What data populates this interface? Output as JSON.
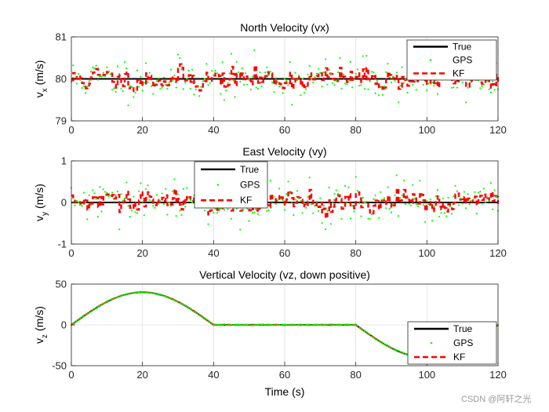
{
  "chart_data": [
    {
      "type": "line",
      "title": "North Velocity (vx)",
      "ylabel": "v",
      "ylabel_sub": "x",
      "ylabel_unit": "(m/s)",
      "xlabel": "",
      "xlim": [
        0,
        120
      ],
      "ylim": [
        79,
        81
      ],
      "xticks": [
        0,
        20,
        40,
        60,
        80,
        100,
        120
      ],
      "yticks": [
        79,
        80,
        81
      ],
      "grid": true,
      "legend_position": "top-right",
      "series": [
        {
          "name": "True",
          "color": "#000000",
          "style": "solid",
          "x": [
            0,
            120
          ],
          "values": [
            80,
            80
          ]
        },
        {
          "name": "GPS",
          "color": "#00ff00",
          "style": "markers",
          "model": "noise",
          "base": 80,
          "sigma": 0.25,
          "seed": 11
        },
        {
          "name": "KF",
          "color": "#ff0000",
          "style": "dashed",
          "model": "noise",
          "base": 80,
          "sigma": 0.22,
          "seed": 11
        }
      ]
    },
    {
      "type": "line",
      "title": "East Velocity (vy)",
      "ylabel": "v",
      "ylabel_sub": "y",
      "ylabel_unit": "(m/s)",
      "xlabel": "",
      "xlim": [
        0,
        120
      ],
      "ylim": [
        -1,
        1
      ],
      "xticks": [
        0,
        20,
        40,
        60,
        80,
        100,
        120
      ],
      "yticks": [
        -1,
        0,
        1
      ],
      "grid": true,
      "legend_position": "top-center",
      "series": [
        {
          "name": "True",
          "color": "#000000",
          "style": "solid",
          "x": [
            0,
            120
          ],
          "values": [
            0,
            0
          ]
        },
        {
          "name": "GPS",
          "color": "#00ff00",
          "style": "markers",
          "model": "noise",
          "base": 0,
          "sigma": 0.25,
          "seed": 29
        },
        {
          "name": "KF",
          "color": "#ff0000",
          "style": "dashed",
          "model": "noise",
          "base": 0,
          "sigma": 0.22,
          "seed": 29
        }
      ]
    },
    {
      "type": "line",
      "title": "Vertical Velocity (vz, down positive)",
      "ylabel": "v",
      "ylabel_sub": "z",
      "ylabel_unit": "(m/s)",
      "xlabel": "Time (s)",
      "xlim": [
        0,
        120
      ],
      "ylim": [
        -50,
        50
      ],
      "xticks": [
        0,
        20,
        40,
        60,
        80,
        100,
        120
      ],
      "yticks": [
        -50,
        0,
        50
      ],
      "grid": true,
      "legend_position": "bottom-right",
      "series": [
        {
          "name": "True",
          "color": "#000000",
          "style": "solid",
          "model": "vertical",
          "amplitude": 40
        },
        {
          "name": "GPS",
          "color": "#00ff00",
          "style": "markers",
          "model": "vertical",
          "amplitude": 40
        },
        {
          "name": "KF",
          "color": "#ff0000",
          "style": "dashed",
          "model": "vertical",
          "amplitude": 40
        }
      ]
    }
  ],
  "watermark": "CSDN @阿轩之光"
}
